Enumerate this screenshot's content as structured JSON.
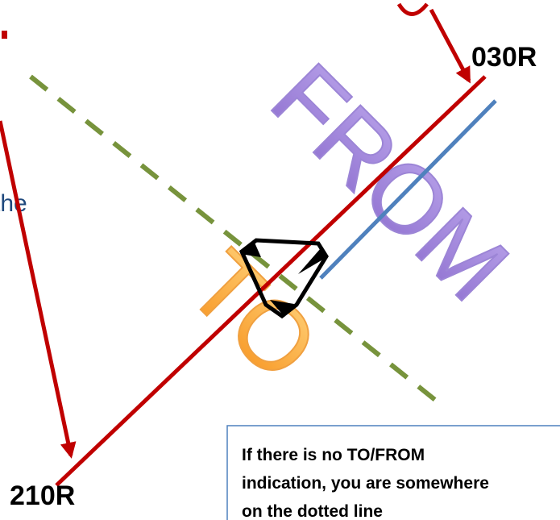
{
  "labels": {
    "top_radial": "030R",
    "bottom_radial": "210R",
    "from": "FROM",
    "to": "TO",
    "partial_text": "the"
  },
  "note": {
    "lines": [
      "If there is no TO/FROM",
      "indication, you are somewhere",
      "on the dotted line"
    ]
  }
}
